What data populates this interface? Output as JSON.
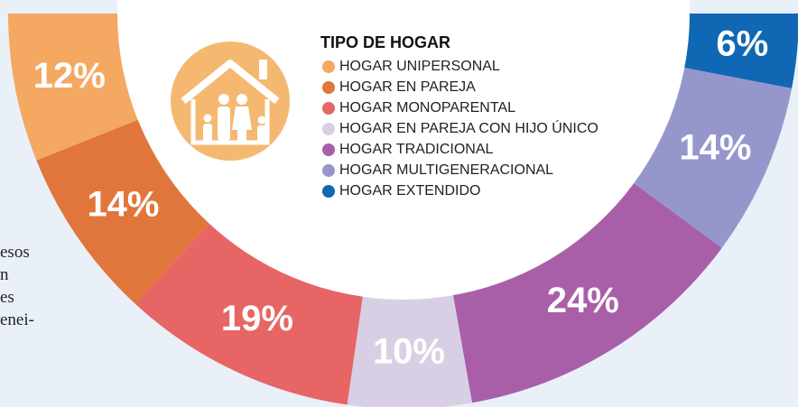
{
  "chart_data": {
    "type": "donut",
    "legend_title": "TIPO DE HOGAR",
    "categories": [
      "HOGAR UNIPERSONAL",
      "HOGAR EN PAREJA",
      "HOGAR MONOPARENTAL",
      "HOGAR EN PAREJA CON HIJO ÚNICO",
      "HOGAR TRADICIONAL",
      "HOGAR MULTIGENERACIONAL",
      "HOGAR EXTENDIDO"
    ],
    "values": [
      12,
      14,
      19,
      10,
      24,
      14,
      6
    ],
    "value_labels": [
      "12%",
      "14%",
      "19%",
      "10%",
      "24%",
      "14%",
      "6%"
    ],
    "colors": [
      "#f5a862",
      "#e0763b",
      "#e86565",
      "#d9cfe4",
      "#a95fa8",
      "#9597cc",
      "#1067b4"
    ]
  },
  "fragments": [
    "esos",
    "n",
    "es",
    "enei-"
  ]
}
